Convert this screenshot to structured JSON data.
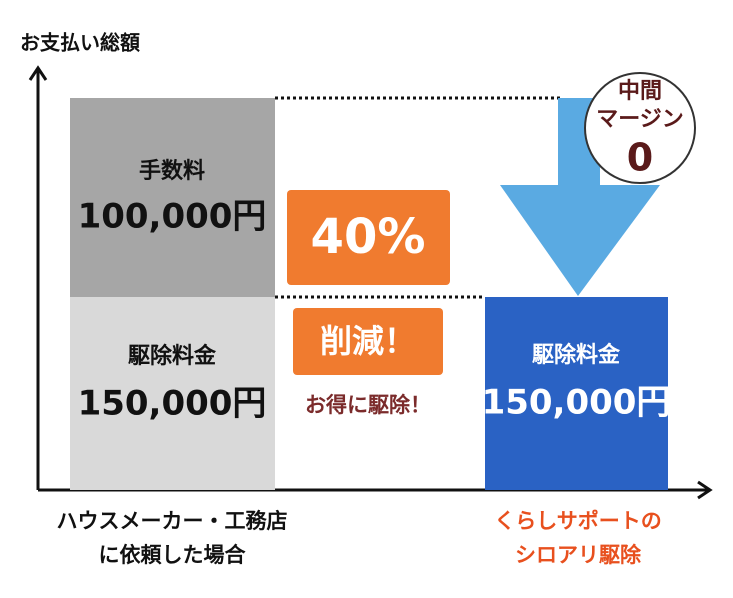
{
  "axis_label": "お支払い総額",
  "left": {
    "fee_title": "手数料",
    "fee_amount": "100,000円",
    "base_title": "駆除料金",
    "base_amount": "150,000円",
    "caption": [
      "ハウスメーカー・工務店",
      "に依頼した場合"
    ]
  },
  "middle": {
    "percent": "40%",
    "reduction": "削減！",
    "note": "お得に駆除！"
  },
  "right": {
    "base_title": "駆除料金",
    "base_amount": "150,000円",
    "caption": [
      "くらしサポートの",
      "シロアリ駆除"
    ]
  },
  "badge": {
    "line1": "中間",
    "line2": "マージン",
    "value": "0"
  }
}
